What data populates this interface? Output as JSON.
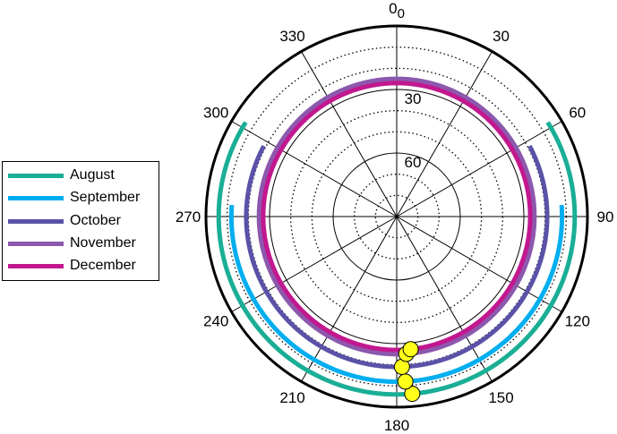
{
  "chart_data": {
    "type": "polar-sunpath",
    "azimuth_ticks": [
      "0",
      "30",
      "60",
      "90",
      "120",
      "150",
      "180",
      "210",
      "240",
      "270",
      "300",
      "330"
    ],
    "north_subscript": "0",
    "altitude_ticks": [
      "30",
      "60"
    ],
    "altitude_range": [
      0,
      90
    ],
    "azimuth_range": [
      0,
      360
    ],
    "grid": true,
    "legend_position": "left",
    "series": [
      {
        "name": "August",
        "color": "#1aae96",
        "altitude": 6,
        "azimuth_range": [
          58,
          302
        ],
        "marker_azimuth": 175
      },
      {
        "name": "September",
        "color": "#00aeef",
        "altitude": 12,
        "azimuth_range": [
          86,
          274
        ],
        "marker_azimuth": 177
      },
      {
        "name": "October",
        "color": "#5b52a8",
        "altitude": 19,
        "azimuth_range": [
          62,
          298
        ],
        "marker_azimuth": 178
      },
      {
        "name": "November",
        "color": "#8c58ad",
        "altitude": 25,
        "azimuth_range": [
          0,
          360
        ],
        "marker_azimuth": 176
      },
      {
        "name": "December",
        "color": "#c2188f",
        "altitude": 27,
        "azimuth_range": [
          0,
          360
        ],
        "marker_azimuth": 174
      }
    ],
    "marker_color": "#ffff1a"
  },
  "legend": {
    "items": [
      {
        "label": "August",
        "color": "#1aae96"
      },
      {
        "label": "September",
        "color": "#00aeef"
      },
      {
        "label": "October",
        "color": "#5b52a8"
      },
      {
        "label": "November",
        "color": "#8c58ad"
      },
      {
        "label": "December",
        "color": "#c2188f"
      }
    ]
  }
}
